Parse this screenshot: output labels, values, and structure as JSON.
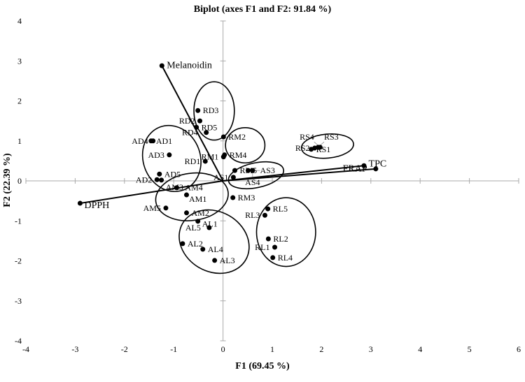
{
  "chart_data": {
    "type": "scatter",
    "title": "Biplot (axes F1 and F2: 91.84 %)",
    "xlabel": "F1 (69.45 %)",
    "ylabel": "F2 (22.39 %)",
    "xlim": [
      -4,
      6
    ],
    "ylim": [
      -4,
      4
    ],
    "xticks": [
      -4,
      -3,
      -2,
      -1,
      0,
      1,
      2,
      3,
      4,
      5,
      6
    ],
    "yticks": [
      -4,
      -3,
      -2,
      -1,
      0,
      1,
      2,
      3,
      4
    ],
    "grid": false,
    "colors": {
      "marks": "#000000",
      "axis": "#aaaaaa"
    },
    "variables": [
      {
        "label": "Melanoidin",
        "x": -1.24,
        "y": 2.88
      },
      {
        "label": "DPPH",
        "x": -2.9,
        "y": -0.56
      },
      {
        "label": "TPC",
        "x": 2.86,
        "y": 0.38
      },
      {
        "label": "FRAP",
        "x": 3.1,
        "y": 0.3
      }
    ],
    "observations": [
      {
        "label": "RD3",
        "x": -0.51,
        "y": 1.76
      },
      {
        "label": "RD2",
        "x": -0.47,
        "y": 1.5
      },
      {
        "label": "RD5",
        "x": -0.54,
        "y": 1.34
      },
      {
        "label": "RD4",
        "x": -0.34,
        "y": 1.21
      },
      {
        "label": "RM2",
        "x": 0.01,
        "y": 1.1
      },
      {
        "label": "RM4",
        "x": 0.03,
        "y": 0.65
      },
      {
        "label": "RM1",
        "x": 0.01,
        "y": 0.6
      },
      {
        "label": "RD1",
        "x": -0.36,
        "y": 0.49
      },
      {
        "label": "AD1",
        "x": -1.46,
        "y": 1.0
      },
      {
        "label": "AD4",
        "x": -1.42,
        "y": 1.0
      },
      {
        "label": "AD3",
        "x": -1.09,
        "y": 0.65
      },
      {
        "label": "AD5",
        "x": -1.29,
        "y": 0.17
      },
      {
        "label": "AD2",
        "x": -1.34,
        "y": 0.03
      },
      {
        "label": "AM3",
        "x": -1.25,
        "y": 0.02
      },
      {
        "label": "AM4",
        "x": -0.94,
        "y": -0.17
      },
      {
        "label": "AM1",
        "x": -0.74,
        "y": -0.35
      },
      {
        "label": "AM5",
        "x": -1.16,
        "y": -0.68
      },
      {
        "label": "AM2",
        "x": -0.74,
        "y": -0.8
      },
      {
        "label": "AL1",
        "x": -0.51,
        "y": -1.01
      },
      {
        "label": "AL5",
        "x": -0.28,
        "y": -1.17
      },
      {
        "label": "AL2",
        "x": -0.82,
        "y": -1.57
      },
      {
        "label": "AL4",
        "x": -0.41,
        "y": -1.71
      },
      {
        "label": "AL3",
        "x": -0.17,
        "y": -1.99
      },
      {
        "label": "RM3",
        "x": 0.2,
        "y": -0.42
      },
      {
        "label": "RL5",
        "x": 0.91,
        "y": -0.7
      },
      {
        "label": "RL3",
        "x": 0.85,
        "y": -0.86
      },
      {
        "label": "RL2",
        "x": 0.92,
        "y": -1.45
      },
      {
        "label": "RL1",
        "x": 1.05,
        "y": -1.66
      },
      {
        "label": "RL4",
        "x": 1.01,
        "y": -1.92
      },
      {
        "label": "RM5",
        "x": 0.24,
        "y": 0.26
      },
      {
        "label": "AS1",
        "x": 0.21,
        "y": 0.09
      },
      {
        "label": "AS3",
        "x": 0.51,
        "y": 0.26
      },
      {
        "label": "AS4",
        "x": 0.6,
        "y": 0.26
      },
      {
        "label": "RS1",
        "x": 1.79,
        "y": 0.79
      },
      {
        "label": "RS2",
        "x": 1.86,
        "y": 0.82
      },
      {
        "label": "RS3",
        "x": 1.93,
        "y": 0.84
      },
      {
        "label": "RS4",
        "x": 1.97,
        "y": 0.84
      }
    ],
    "groups": [
      {
        "cx": -0.18,
        "cy": 1.75,
        "rx": 0.41,
        "ry": 0.73,
        "rotate": 0
      },
      {
        "cx": -1.04,
        "cy": 0.56,
        "rx": 0.58,
        "ry": 0.84,
        "rotate": -20
      },
      {
        "cx": 0.45,
        "cy": 0.89,
        "rx": 0.4,
        "ry": 0.44,
        "rotate": 0
      },
      {
        "cx": 0.67,
        "cy": 0.14,
        "rx": 0.57,
        "ry": 0.31,
        "rotate": -12
      },
      {
        "cx": -0.63,
        "cy": -0.4,
        "rx": 0.74,
        "ry": 0.59,
        "rotate": -8
      },
      {
        "cx": -0.18,
        "cy": -1.52,
        "rx": 0.74,
        "ry": 0.75,
        "rotate": 30
      },
      {
        "cx": 1.28,
        "cy": -1.28,
        "rx": 0.6,
        "ry": 0.86,
        "rotate": 0
      },
      {
        "cx": 2.12,
        "cy": 0.87,
        "rx": 0.53,
        "ry": 0.3,
        "rotate": -5
      }
    ]
  }
}
